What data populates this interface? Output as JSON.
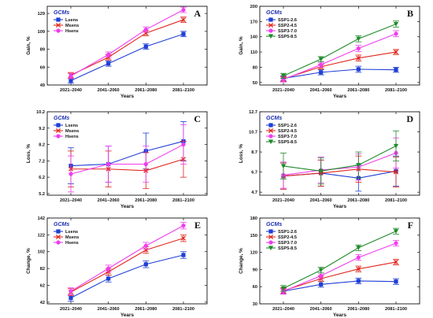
{
  "figure": {
    "x_axis_label": "Years",
    "categories": [
      "2021–2040",
      "2041–2060",
      "2061–2080",
      "2081–2100"
    ],
    "legend_title": "GCMs"
  },
  "colors": {
    "blue": "#1f3fd6",
    "red": "#e0261c",
    "magenta": "#f03cf0",
    "green": "#1e8a2a"
  },
  "chart_data": [
    {
      "panel": "A",
      "type": "line",
      "ylabel": "Gain, %",
      "ylim": [
        49,
        137
      ],
      "yticks": [
        49,
        69,
        89,
        109,
        129
      ],
      "categories": [
        "2021–2040",
        "2041–2060",
        "2061–2080",
        "2081–2100"
      ],
      "series": [
        {
          "name": "Lsens",
          "color": "blue",
          "marker": "square",
          "values": [
            54,
            73,
            92,
            106
          ],
          "err": [
            3,
            3,
            3,
            3
          ]
        },
        {
          "name": "Msens",
          "color": "red",
          "marker": "x",
          "values": [
            60,
            80,
            107,
            122
          ],
          "err": [
            3,
            3,
            3,
            3
          ]
        },
        {
          "name": "Hsens",
          "color": "magenta",
          "marker": "circle",
          "values": [
            59,
            83,
            111,
            133
          ],
          "err": [
            3,
            3,
            3,
            3
          ]
        }
      ]
    },
    {
      "panel": "B",
      "type": "line",
      "ylabel": "Gain, %",
      "ylim": [
        45,
        200
      ],
      "yticks": [
        50,
        80,
        110,
        140,
        170,
        200
      ],
      "categories": [
        "2021–2040",
        "2041–2060",
        "2061–2080",
        "2081–2100"
      ],
      "series": [
        {
          "name": "SSP1-2.6",
          "color": "blue",
          "marker": "square",
          "values": [
            58,
            70,
            76,
            75
          ],
          "err": [
            5,
            5,
            6,
            5
          ]
        },
        {
          "name": "SSP2-4.5",
          "color": "red",
          "marker": "x",
          "values": [
            57,
            81,
            98,
            110
          ],
          "err": [
            5,
            5,
            6,
            5
          ]
        },
        {
          "name": "SSP3-7.0",
          "color": "magenta",
          "marker": "circle",
          "values": [
            56,
            85,
            117,
            146
          ],
          "err": [
            5,
            5,
            6,
            6
          ]
        },
        {
          "name": "SSP5-8.5",
          "color": "green",
          "marker": "triangle",
          "values": [
            63,
            96,
            136,
            165
          ],
          "err": [
            5,
            5,
            6,
            6
          ]
        }
      ]
    },
    {
      "panel": "C",
      "type": "line",
      "ylabel": "Loss, %",
      "ylim": [
        5.1,
        10.2
      ],
      "yticks": [
        5.2,
        6.2,
        7.2,
        8.2,
        9.2,
        10.2
      ],
      "categories": [
        "2021–2040",
        "2041–2060",
        "2061–2080",
        "2081–2100"
      ],
      "series": [
        {
          "name": "Lsens",
          "color": "blue",
          "marker": "square",
          "values": [
            6.9,
            7.0,
            7.8,
            8.4
          ],
          "err": [
            1.1,
            1.1,
            1.1,
            1.2
          ]
        },
        {
          "name": "Msens",
          "color": "red",
          "marker": "x",
          "values": [
            6.7,
            6.7,
            6.6,
            7.3
          ],
          "err": [
            1.1,
            1.1,
            1.1,
            1.1
          ]
        },
        {
          "name": "Hsens",
          "color": "magenta",
          "marker": "circle",
          "values": [
            6.4,
            7.0,
            7.0,
            8.2
          ],
          "err": [
            1.1,
            1.1,
            1.1,
            1.2
          ]
        }
      ]
    },
    {
      "panel": "D",
      "type": "line",
      "ylabel": "Loss, %",
      "ylim": [
        4.4,
        12.7
      ],
      "yticks": [
        4.7,
        6.7,
        8.7,
        10.7,
        12.7
      ],
      "categories": [
        "2021–2040",
        "2041–2060",
        "2061–2080",
        "2081–2100"
      ],
      "series": [
        {
          "name": "SSP1-2.6",
          "color": "blue",
          "marker": "square",
          "values": [
            6.3,
            6.6,
            6.1,
            6.8
          ],
          "err": [
            1.3,
            1.3,
            1.3,
            1.5
          ]
        },
        {
          "name": "SSP2-4.5",
          "color": "red",
          "marker": "x",
          "values": [
            6.3,
            6.6,
            7.0,
            6.7
          ],
          "err": [
            1.3,
            1.3,
            1.3,
            1.5
          ]
        },
        {
          "name": "SSP3-7.0",
          "color": "magenta",
          "marker": "circle",
          "values": [
            6.4,
            6.9,
            7.2,
            8.6
          ],
          "err": [
            1.3,
            1.3,
            1.3,
            1.5
          ]
        },
        {
          "name": "SSP5-8.5",
          "color": "green",
          "marker": "triangle",
          "values": [
            7.3,
            6.8,
            7.4,
            9.3
          ],
          "err": [
            1.3,
            1.3,
            1.3,
            1.5
          ]
        }
      ]
    },
    {
      "panel": "E",
      "type": "line",
      "ylabel": "Change, %",
      "ylim": [
        40,
        142
      ],
      "yticks": [
        42,
        62,
        82,
        102,
        122,
        142
      ],
      "categories": [
        "2021–2040",
        "2041–2060",
        "2061–2080",
        "2081–2100"
      ],
      "series": [
        {
          "name": "Lsens",
          "color": "blue",
          "marker": "square",
          "values": [
            47,
            70,
            87,
            98
          ],
          "err": [
            4,
            4,
            4,
            4
          ]
        },
        {
          "name": "Msens",
          "color": "red",
          "marker": "x",
          "values": [
            54,
            78,
            104,
            118
          ],
          "err": [
            4,
            4,
            4,
            4
          ]
        },
        {
          "name": "Hsens",
          "color": "magenta",
          "marker": "circle",
          "values": [
            55,
            82,
            109,
            133
          ],
          "err": [
            4,
            4,
            4,
            4
          ]
        }
      ]
    },
    {
      "panel": "F",
      "type": "line",
      "ylabel": "Change, %",
      "ylim": [
        30,
        180
      ],
      "yticks": [
        30,
        60,
        90,
        120,
        150,
        180
      ],
      "categories": [
        "2021–2040",
        "2041–2060",
        "2061–2080",
        "2081–2100"
      ],
      "series": [
        {
          "name": "SSP1-2.6",
          "color": "blue",
          "marker": "square",
          "values": [
            52,
            64,
            70,
            69
          ],
          "err": [
            5,
            5,
            5,
            5
          ]
        },
        {
          "name": "SSP2-4.5",
          "color": "red",
          "marker": "x",
          "values": [
            53,
            74,
            91,
            103
          ],
          "err": [
            5,
            5,
            5,
            5
          ]
        },
        {
          "name": "SSP3-7.0",
          "color": "magenta",
          "marker": "circle",
          "values": [
            52,
            79,
            111,
            136
          ],
          "err": [
            5,
            5,
            5,
            5
          ]
        },
        {
          "name": "SSP5-8.5",
          "color": "green",
          "marker": "triangle",
          "values": [
            57,
            89,
            128,
            157
          ],
          "err": [
            5,
            5,
            5,
            5
          ]
        }
      ]
    }
  ]
}
